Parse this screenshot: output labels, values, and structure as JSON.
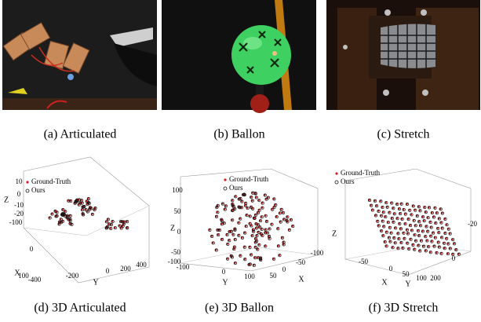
{
  "figures": [
    {
      "caption": "(a)  Articulated"
    },
    {
      "caption": "(b)  Ballon"
    },
    {
      "caption": "(c)  Stretch"
    }
  ],
  "plots": [
    {
      "caption": "(d)  3D Articulated",
      "legend": [
        "Ground-Truth",
        "Ours"
      ],
      "z_label": "Z",
      "x_label": "X",
      "y_label": "Y",
      "z_ticks": [
        "10",
        "0",
        "-10",
        "-20"
      ],
      "x_ticks": [
        "-100",
        "0",
        "100"
      ],
      "y_ticks": [
        "-400",
        "-200",
        "0",
        "200",
        "400"
      ]
    },
    {
      "caption": "(e)  3D Ballon",
      "legend": [
        "Ground-Truth",
        "Ours"
      ],
      "z_label": "Z",
      "x_label": "X",
      "y_label": "Y",
      "z_ticks": [
        "100",
        "50",
        "0",
        "-50",
        "-100"
      ],
      "y_ticks": [
        "-100",
        "0",
        "100"
      ],
      "x_ticks": [
        "50",
        "0",
        "-50",
        "-100"
      ]
    },
    {
      "caption": "(f)  3D Stretch",
      "legend": [
        "Ground-Truth",
        "Ours"
      ],
      "z_label": "Z",
      "x_label": "X",
      "y_label": "Y",
      "y_ticks": [
        "-50",
        "0",
        "50",
        "100"
      ],
      "x_ticks": [
        "200",
        "0",
        "-20"
      ]
    }
  ]
}
